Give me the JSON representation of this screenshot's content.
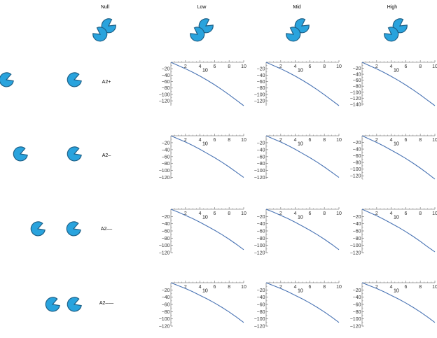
{
  "headers": {
    "null": "Null",
    "low": "Low",
    "mid": "Mid",
    "high": "High"
  },
  "rows": [
    {
      "label": "A2+"
    },
    {
      "label": "A2–"
    },
    {
      "label": "A2––"
    },
    {
      "label": "A2–––"
    }
  ],
  "colors": {
    "shape_fill": "#29a3dd",
    "shape_stroke": "#1d5f86",
    "line": "#4a74b4",
    "axis": "#888888"
  },
  "chart_data": [
    {
      "type": "line",
      "row": "A2+",
      "col": "Low",
      "x": [
        0,
        1,
        2,
        3,
        4,
        5,
        6,
        7,
        8,
        9,
        10
      ],
      "y": [
        0,
        -10,
        -20,
        -31,
        -43,
        -56,
        -70,
        -85,
        -101,
        -118,
        -135
      ],
      "annotation": "10",
      "xticks": [
        "2",
        "4",
        "6",
        "8",
        "10"
      ],
      "yticks": [
        "-20",
        "-40",
        "-60",
        "-80",
        "-100",
        "-120"
      ],
      "ylim": [
        -135,
        0
      ],
      "xlim": [
        0,
        10
      ]
    },
    {
      "type": "line",
      "row": "A2+",
      "col": "Mid",
      "x": [
        0,
        1,
        2,
        3,
        4,
        5,
        6,
        7,
        8,
        9,
        10
      ],
      "y": [
        0,
        -10,
        -20,
        -31,
        -43,
        -56,
        -70,
        -85,
        -101,
        -118,
        -135
      ],
      "annotation": "10",
      "xticks": [
        "2",
        "4",
        "6",
        "8",
        "10"
      ],
      "yticks": [
        "-20",
        "-40",
        "-60",
        "-80",
        "-100",
        "-120"
      ],
      "ylim": [
        -135,
        0
      ],
      "xlim": [
        0,
        10
      ]
    },
    {
      "type": "line",
      "row": "A2+",
      "col": "High",
      "x": [
        0,
        1,
        2,
        3,
        4,
        5,
        6,
        7,
        8,
        9,
        10
      ],
      "y": [
        0,
        -11,
        -22,
        -34,
        -47,
        -61,
        -76,
        -92,
        -109,
        -127,
        -145
      ],
      "annotation": "10",
      "xticks": [
        "2",
        "4",
        "6",
        "8",
        "10"
      ],
      "yticks": [
        "-20",
        "-40",
        "-60",
        "-80",
        "-100",
        "-120",
        "-140"
      ],
      "ylim": [
        -145,
        0
      ],
      "xlim": [
        0,
        10
      ]
    },
    {
      "type": "line",
      "row": "A2–",
      "col": "Low",
      "x": [
        0,
        1,
        2,
        3,
        4,
        5,
        6,
        7,
        8,
        9,
        10
      ],
      "y": [
        0,
        -9,
        -18,
        -28,
        -39,
        -51,
        -63,
        -76,
        -90,
        -105,
        -120
      ],
      "annotation": "10",
      "xticks": [
        "2",
        "4",
        "6",
        "8",
        "10"
      ],
      "yticks": [
        "-20",
        "-40",
        "-60",
        "-80",
        "-100",
        "-120"
      ],
      "ylim": [
        -125,
        0
      ],
      "xlim": [
        0,
        10
      ]
    },
    {
      "type": "line",
      "row": "A2–",
      "col": "Mid",
      "x": [
        0,
        1,
        2,
        3,
        4,
        5,
        6,
        7,
        8,
        9,
        10
      ],
      "y": [
        0,
        -9,
        -18,
        -28,
        -39,
        -51,
        -63,
        -76,
        -90,
        -105,
        -120
      ],
      "annotation": "10",
      "xticks": [
        "2",
        "4",
        "6",
        "8",
        "10"
      ],
      "yticks": [
        "-20",
        "-40",
        "-60",
        "-80",
        "-100",
        "-120"
      ],
      "ylim": [
        -125,
        0
      ],
      "xlim": [
        0,
        10
      ]
    },
    {
      "type": "line",
      "row": "A2–",
      "col": "High",
      "x": [
        0,
        1,
        2,
        3,
        4,
        5,
        6,
        7,
        8,
        9,
        10
      ],
      "y": [
        0,
        -10,
        -20,
        -31,
        -43,
        -55,
        -68,
        -82,
        -97,
        -113,
        -130
      ],
      "annotation": "10",
      "xticks": [
        "2",
        "4",
        "6",
        "8",
        "10"
      ],
      "yticks": [
        "-20",
        "-40",
        "-60",
        "-80",
        "-100",
        "-120"
      ],
      "ylim": [
        -130,
        0
      ],
      "xlim": [
        0,
        10
      ]
    },
    {
      "type": "line",
      "row": "A2––",
      "col": "Low",
      "x": [
        0,
        1,
        2,
        3,
        4,
        5,
        6,
        7,
        8,
        9,
        10
      ],
      "y": [
        0,
        -8,
        -17,
        -26,
        -36,
        -47,
        -58,
        -70,
        -83,
        -97,
        -112
      ],
      "annotation": "10",
      "xticks": [
        "2",
        "4",
        "6",
        "8",
        "10"
      ],
      "yticks": [
        "-20",
        "-40",
        "-60",
        "-80",
        "-100",
        "-120"
      ],
      "ylim": [
        -120,
        0
      ],
      "xlim": [
        0,
        10
      ]
    },
    {
      "type": "line",
      "row": "A2––",
      "col": "Mid",
      "x": [
        0,
        1,
        2,
        3,
        4,
        5,
        6,
        7,
        8,
        9,
        10
      ],
      "y": [
        0,
        -8,
        -17,
        -26,
        -36,
        -47,
        -58,
        -70,
        -83,
        -97,
        -112
      ],
      "annotation": "10",
      "xticks": [
        "2",
        "4",
        "6",
        "8",
        "10"
      ],
      "yticks": [
        "-20",
        "-40",
        "-60",
        "-80",
        "-100",
        "-120"
      ],
      "ylim": [
        -120,
        0
      ],
      "xlim": [
        0,
        10
      ]
    },
    {
      "type": "line",
      "row": "A2––",
      "col": "High",
      "x": [
        0,
        1,
        2,
        3,
        4,
        5,
        6,
        7,
        8,
        9,
        10
      ],
      "y": [
        0,
        -9,
        -18,
        -28,
        -39,
        -50,
        -62,
        -75,
        -89,
        -104,
        -118
      ],
      "annotation": "10",
      "xticks": [
        "2",
        "4",
        "6",
        "8",
        "10"
      ],
      "yticks": [
        "-20",
        "-40",
        "-60",
        "-80",
        "-100",
        "-120"
      ],
      "ylim": [
        -120,
        0
      ],
      "xlim": [
        0,
        10
      ]
    },
    {
      "type": "line",
      "row": "A2–––",
      "col": "Low",
      "x": [
        0,
        1,
        2,
        3,
        4,
        5,
        6,
        7,
        8,
        9,
        10
      ],
      "y": [
        0,
        -8,
        -16,
        -25,
        -35,
        -45,
        -56,
        -68,
        -81,
        -95,
        -110
      ],
      "annotation": "10",
      "xticks": [
        "2",
        "4",
        "6",
        "8",
        "10"
      ],
      "yticks": [
        "-20",
        "-40",
        "-60",
        "-80",
        "-100",
        "-120"
      ],
      "ylim": [
        -120,
        0
      ],
      "xlim": [
        0,
        10
      ]
    },
    {
      "type": "line",
      "row": "A2–––",
      "col": "Mid",
      "x": [
        0,
        1,
        2,
        3,
        4,
        5,
        6,
        7,
        8,
        9,
        10
      ],
      "y": [
        0,
        -8,
        -16,
        -25,
        -35,
        -45,
        -56,
        -68,
        -81,
        -95,
        -110
      ],
      "annotation": "10",
      "xticks": [
        "2",
        "4",
        "6",
        "8",
        "10"
      ],
      "yticks": [
        "-20",
        "-40",
        "-60",
        "-80",
        "-100",
        "-120"
      ],
      "ylim": [
        -120,
        0
      ],
      "xlim": [
        0,
        10
      ]
    },
    {
      "type": "line",
      "row": "A2–––",
      "col": "High",
      "x": [
        0,
        1,
        2,
        3,
        4,
        5,
        6,
        7,
        8,
        9,
        10
      ],
      "y": [
        0,
        -8,
        -16,
        -25,
        -35,
        -45,
        -56,
        -68,
        -81,
        -95,
        -110
      ],
      "annotation": "10",
      "xticks": [
        "2",
        "4",
        "6",
        "8",
        "10"
      ],
      "yticks": [
        "-20",
        "-40",
        "-60",
        "-80",
        "-100",
        "-120"
      ],
      "ylim": [
        -120,
        0
      ],
      "xlim": [
        0,
        10
      ]
    }
  ]
}
